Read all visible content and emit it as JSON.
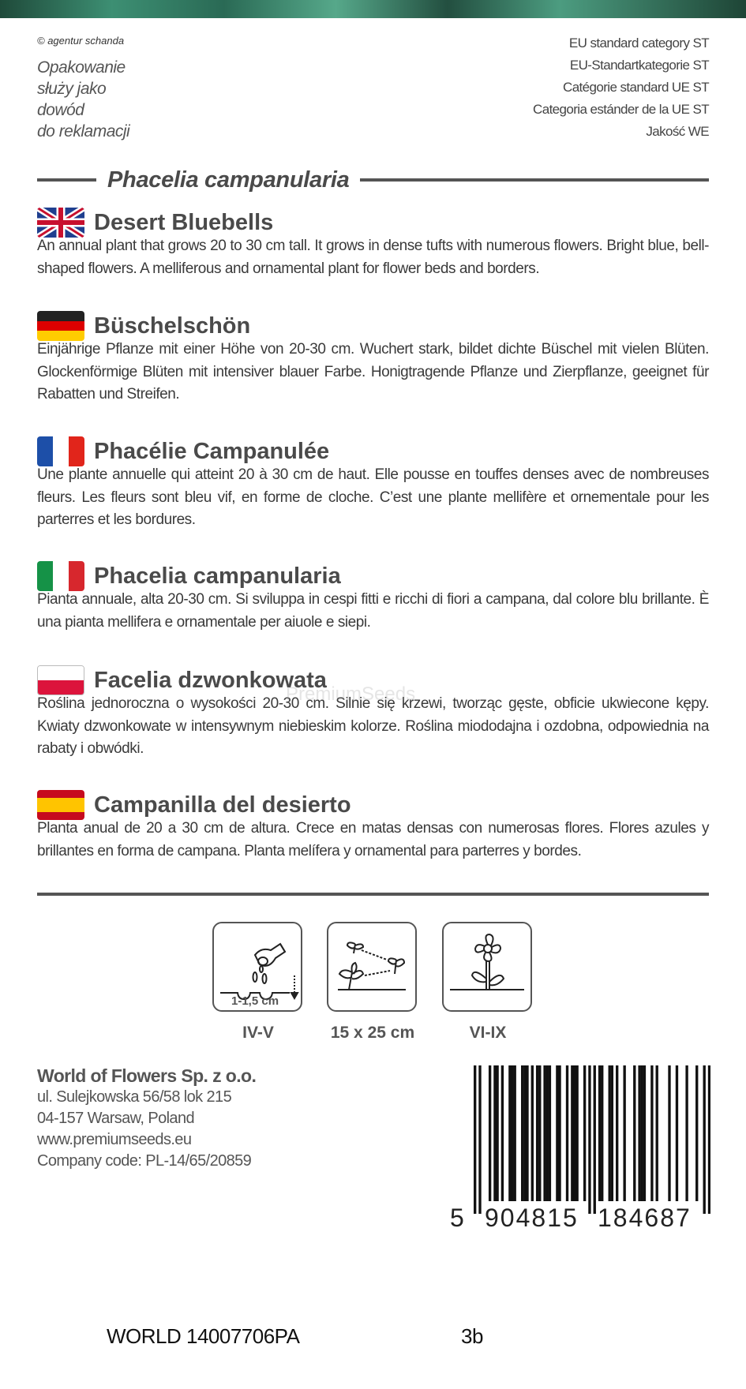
{
  "header": {
    "copyright": "© agentur schanda",
    "note_lines": [
      "Opakowanie",
      "służy jako",
      "dowód",
      "do reklamacji"
    ],
    "quality_lines": [
      "EU standard category ST",
      "EU-Standartkategorie ST",
      "Catégorie standard UE ST",
      "Categoria estánder de la UE ST",
      "Jakość WE"
    ]
  },
  "latin_name": "Phacelia campanularia",
  "sections": [
    {
      "lang": "en",
      "flag": "uk-flag",
      "title": "Desert Bluebells",
      "body": "An annual plant that grows 20 to 30 cm tall. It grows in dense tufts with numerous flowers. Bright blue, bell-shaped flowers. A melliferous and ornamental plant for flower beds and borders."
    },
    {
      "lang": "de",
      "flag": "germany-flag",
      "title": "Büschelschön",
      "body": "Einjährige Pflanze mit einer Höhe von 20-30 cm. Wuchert stark, bildet dichte Büschel mit vielen Blüten. Glockenförmige Blüten mit intensiver blauer Farbe. Honigtragende Pflanze und Zierpflanze, geeignet für Rabatten und Streifen."
    },
    {
      "lang": "fr",
      "flag": "france-flag",
      "title": "Phacélie Campanulée",
      "body": "Une plante annuelle qui atteint 20 à 30 cm de haut. Elle pousse en touffes denses avec de nombreuses fleurs. Les fleurs sont bleu vif, en forme de cloche. C’est une plante mellifère et ornementale pour les parterres et les bordures."
    },
    {
      "lang": "it",
      "flag": "italy-flag",
      "title": "Phacelia campanularia",
      "body": "Pianta annuale, alta 20-30 cm. Si sviluppa in cespi fitti e ricchi di fiori a campana, dal colore blu brillante. È una pianta mellifera e ornamentale per aiuole e siepi."
    },
    {
      "lang": "pl",
      "flag": "poland-flag",
      "title": "Facelia dzwonkowata",
      "body": "Roślina jednoroczna o wysokości 20-30 cm. Silnie się krzewi, tworząc gęste, obficie ukwiecone kępy. Kwiaty dzwonkowate w intensywnym niebieskim kolorze. Roślina miododajna i ozdobna, odpowiednia na rabaty i obwódki."
    },
    {
      "lang": "es",
      "flag": "spain-flag",
      "title": "Campanilla del desierto",
      "body": "Planta anual de 20 a 30 cm de altura. Crece en matas densas con numerosas flores. Flores azules y brillantes en forma de campana. Planta melífera y ornamental para parterres y bordes."
    }
  ],
  "watermark": "PremiumSeeds",
  "icons": [
    {
      "icon": "sowing-icon",
      "inner_label": "1-1,5 cm",
      "label": "IV-V"
    },
    {
      "icon": "spacing-icon",
      "label": "15 x 25 cm"
    },
    {
      "icon": "flowering-icon",
      "label": "VI-IX"
    }
  ],
  "company": {
    "name": "World of Flowers Sp. z o.o.",
    "address1": "ul. Sulejkowska 56/58 lok 215",
    "address2": "04-157 Warsaw, Poland",
    "website": "www.premiumseeds.eu",
    "code": "Company code: PL-14/65/20859"
  },
  "barcode": {
    "ean": "5904815184687",
    "first": "5",
    "left_group": "904815",
    "right_group": "184687"
  },
  "footer": {
    "code": "WORLD 14007706PA",
    "variant": "3b"
  },
  "colors": {
    "text": "#4a4a4a",
    "rule": "#555555"
  }
}
